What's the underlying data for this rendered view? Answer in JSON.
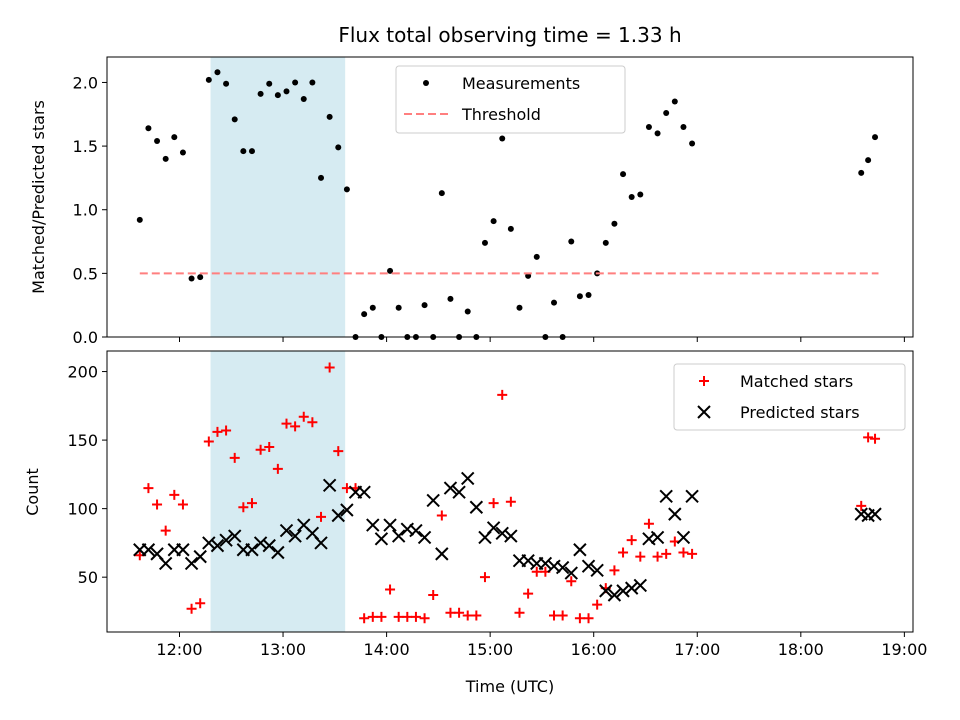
{
  "chart_data": [
    {
      "type": "scatter",
      "title": "Flux total observing time = 1.33 h",
      "ylabel": "Matched/Predicted stars",
      "xlim": [
        "11:18",
        "19:05"
      ],
      "ylim": [
        0,
        2.2
      ],
      "x_ticks": [
        "12:00",
        "13:00",
        "14:00",
        "15:00",
        "16:00",
        "17:00",
        "18:00",
        "19:00"
      ],
      "y_ticks": [
        "0.0",
        "0.5",
        "1.0",
        "1.5",
        "2.0"
      ],
      "shaded_span": [
        "12:18",
        "13:36"
      ],
      "shade_color": "#add8e6",
      "legend": {
        "location": "upper-center",
        "entries": [
          "Measurements",
          "Threshold"
        ]
      },
      "series": [
        {
          "name": "Measurements",
          "marker": "dot",
          "color": "#000000",
          "x": [
            "11:37",
            "11:42",
            "11:47",
            "11:52",
            "11:57",
            "12:02",
            "12:07",
            "12:12",
            "12:17",
            "12:22",
            "12:27",
            "12:32",
            "12:37",
            "12:42",
            "12:47",
            "12:52",
            "12:57",
            "13:02",
            "13:07",
            "13:12",
            "13:17",
            "13:22",
            "13:27",
            "13:32",
            "13:37",
            "13:42",
            "13:47",
            "13:52",
            "13:57",
            "14:02",
            "14:07",
            "14:12",
            "14:17",
            "14:22",
            "14:27",
            "14:32",
            "14:37",
            "14:42",
            "14:47",
            "14:52",
            "14:57",
            "15:02",
            "15:07",
            "15:12",
            "15:17",
            "15:22",
            "15:27",
            "15:32",
            "15:37",
            "15:42",
            "15:47",
            "15:52",
            "15:57",
            "16:02",
            "16:07",
            "16:12",
            "16:17",
            "16:22",
            "16:27",
            "16:32",
            "16:37",
            "16:42",
            "16:47",
            "16:52",
            "16:57",
            "18:35",
            "18:39",
            "18:43"
          ],
          "y": [
            0.92,
            1.64,
            1.54,
            1.4,
            1.57,
            1.45,
            0.46,
            0.47,
            2.02,
            2.08,
            1.99,
            1.71,
            1.46,
            1.46,
            1.91,
            1.99,
            1.9,
            1.93,
            2.0,
            1.87,
            2.0,
            1.25,
            1.73,
            1.49,
            1.16,
            0.0,
            0.18,
            0.23,
            0.0,
            0.52,
            0.23,
            0.0,
            0.0,
            0.25,
            0.0,
            1.13,
            0.3,
            0.0,
            0.2,
            0.0,
            0.74,
            0.91,
            1.56,
            0.85,
            0.23,
            0.48,
            0.63,
            0.0,
            0.27,
            0.0,
            0.75,
            0.32,
            0.33,
            0.5,
            0.74,
            0.89,
            1.28,
            1.1,
            1.12,
            1.65,
            1.6,
            1.76,
            1.85,
            1.65,
            1.52,
            1.29,
            1.39,
            1.57
          ]
        },
        {
          "name": "Threshold",
          "marker": "dashed-line",
          "color": "#ff7f7f",
          "x": [
            "11:37",
            "18:45"
          ],
          "y": [
            0.5,
            0.5
          ]
        }
      ]
    },
    {
      "type": "scatter",
      "ylabel": "Count",
      "xlabel": "Time (UTC)",
      "xlim": [
        "11:18",
        "19:05"
      ],
      "ylim": [
        10,
        215
      ],
      "x_ticks": [
        "12:00",
        "13:00",
        "14:00",
        "15:00",
        "16:00",
        "17:00",
        "18:00",
        "19:00"
      ],
      "y_ticks": [
        "50",
        "100",
        "150",
        "200"
      ],
      "shaded_span": [
        "12:18",
        "13:36"
      ],
      "shade_color": "#add8e6",
      "legend": {
        "location": "upper-right",
        "entries": [
          "Matched stars",
          "Predicted stars"
        ]
      },
      "series": [
        {
          "name": "Matched stars",
          "marker": "plus",
          "color": "#ff0000",
          "x": [
            "11:37",
            "11:42",
            "11:47",
            "11:52",
            "11:57",
            "12:02",
            "12:07",
            "12:12",
            "12:17",
            "12:22",
            "12:27",
            "12:32",
            "12:37",
            "12:42",
            "12:47",
            "12:52",
            "12:57",
            "13:02",
            "13:07",
            "13:12",
            "13:17",
            "13:22",
            "13:27",
            "13:32",
            "13:37",
            "13:42",
            "13:47",
            "13:52",
            "13:57",
            "14:02",
            "14:07",
            "14:12",
            "14:17",
            "14:22",
            "14:27",
            "14:32",
            "14:37",
            "14:42",
            "14:47",
            "14:52",
            "14:57",
            "15:02",
            "15:07",
            "15:12",
            "15:17",
            "15:22",
            "15:27",
            "15:32",
            "15:37",
            "15:42",
            "15:47",
            "15:52",
            "15:57",
            "16:02",
            "16:07",
            "16:12",
            "16:17",
            "16:22",
            "16:27",
            "16:32",
            "16:37",
            "16:42",
            "16:47",
            "16:52",
            "16:57",
            "18:35",
            "18:39",
            "18:43"
          ],
          "y": [
            66,
            115,
            103,
            84,
            110,
            103,
            27,
            31,
            149,
            156,
            157,
            137,
            101,
            104,
            143,
            145,
            129,
            162,
            160,
            167,
            163,
            94,
            203,
            142,
            115,
            115,
            20,
            21,
            21,
            41,
            21,
            21,
            21,
            20,
            37,
            95,
            24,
            24,
            22,
            22,
            50,
            104,
            183,
            105,
            24,
            38,
            54,
            54,
            22,
            22,
            47,
            20,
            20,
            30,
            42,
            55,
            68,
            77,
            65,
            89,
            65,
            67,
            76,
            68,
            67,
            102,
            152,
            151
          ]
        },
        {
          "name": "Predicted stars",
          "marker": "x",
          "color": "#000000",
          "x": [
            "11:37",
            "11:42",
            "11:47",
            "11:52",
            "11:57",
            "12:02",
            "12:07",
            "12:12",
            "12:17",
            "12:22",
            "12:27",
            "12:32",
            "12:37",
            "12:42",
            "12:47",
            "12:52",
            "12:57",
            "13:02",
            "13:07",
            "13:12",
            "13:17",
            "13:22",
            "13:27",
            "13:32",
            "13:37",
            "13:42",
            "13:47",
            "13:52",
            "13:57",
            "14:02",
            "14:07",
            "14:12",
            "14:17",
            "14:22",
            "14:27",
            "14:32",
            "14:37",
            "14:42",
            "14:47",
            "14:52",
            "14:57",
            "15:02",
            "15:07",
            "15:12",
            "15:17",
            "15:22",
            "15:27",
            "15:32",
            "15:37",
            "15:42",
            "15:47",
            "15:52",
            "15:57",
            "16:02",
            "16:07",
            "16:12",
            "16:17",
            "16:22",
            "16:27",
            "16:32",
            "16:37",
            "16:42",
            "16:47",
            "16:52",
            "16:57",
            "18:35",
            "18:39",
            "18:43"
          ],
          "y": [
            70,
            70,
            67,
            60,
            70,
            70,
            60,
            65,
            75,
            73,
            77,
            80,
            70,
            70,
            75,
            73,
            68,
            84,
            80,
            88,
            82,
            75,
            117,
            95,
            99,
            112,
            112,
            88,
            78,
            88,
            80,
            85,
            84,
            79,
            106,
            67,
            115,
            112,
            122,
            101,
            79,
            86,
            82,
            80,
            62,
            62,
            60,
            60,
            58,
            57,
            53,
            70,
            58,
            55,
            40,
            37,
            40,
            42,
            44,
            78,
            79,
            109,
            96,
            79,
            109,
            96,
            95,
            96
          ]
        }
      ]
    }
  ]
}
